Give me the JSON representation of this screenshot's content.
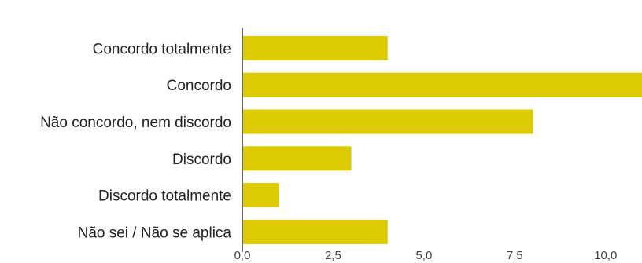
{
  "chart_data": {
    "type": "bar",
    "orientation": "horizontal",
    "categories": [
      "Concordo totalmente",
      "Concordo",
      "Não concordo, nem discordo",
      "Discordo",
      "Discordo totalmente",
      "Não sei / Não se aplica"
    ],
    "values": [
      4,
      11,
      8,
      3,
      1,
      4
    ],
    "xlim": [
      0,
      11
    ],
    "xticks": [
      0,
      2.5,
      5,
      7.5,
      10
    ],
    "xtick_labels": [
      "0,0",
      "2,5",
      "5,0",
      "7,5",
      "10,0"
    ],
    "grid": false,
    "legend": "none",
    "bar_color": "#dccb00",
    "axis_color": "#666666"
  }
}
